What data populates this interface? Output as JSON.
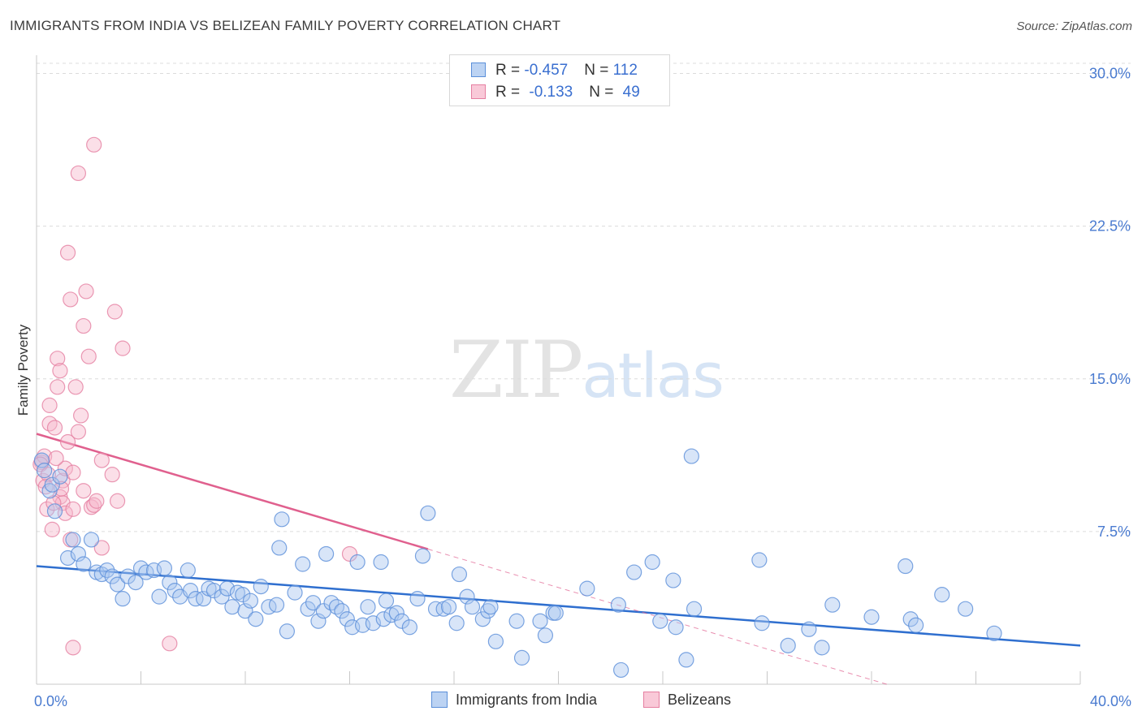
{
  "header": {
    "title": "IMMIGRANTS FROM INDIA VS BELIZEAN FAMILY POVERTY CORRELATION CHART",
    "source": "Source: ZipAtlas.com"
  },
  "watermark": {
    "zip": "ZIP",
    "atlas": "atlas"
  },
  "legend": {
    "india": {
      "r_label": "R = ",
      "r_value": "-0.457",
      "n_label": "N = ",
      "n_value": "112"
    },
    "belize": {
      "r_label": "R = ",
      "r_value": "-0.133",
      "n_label": "N = ",
      "n_value": "49"
    }
  },
  "bottom_legend": {
    "india": "Immigrants from India",
    "belize": "Belizeans"
  },
  "colors": {
    "india_fill": "#a9c6ef",
    "india_stroke": "#5b8fd9",
    "india_line": "#2f6fcf",
    "belize_fill": "#f6b8cc",
    "belize_stroke": "#e57fa1",
    "belize_line": "#e0608e",
    "grid": "#dcdcdc",
    "tick_text": "#4a7bd0"
  },
  "chart_data": {
    "type": "scatter",
    "title": "IMMIGRANTS FROM INDIA VS BELIZEAN FAMILY POVERTY CORRELATION CHART",
    "xlabel": "",
    "ylabel": "Family Poverty",
    "xlim": [
      0,
      40
    ],
    "ylim": [
      0,
      30.5
    ],
    "x_tick_labels": [
      "0.0%",
      "40.0%"
    ],
    "y_ticks": [
      7.5,
      15.0,
      22.5,
      30.0
    ],
    "y_tick_labels": [
      "7.5%",
      "15.0%",
      "22.5%",
      "30.0%"
    ],
    "grid": true,
    "series": [
      {
        "name": "Immigrants from India",
        "trend": {
          "x0": 0,
          "y0": 5.8,
          "x1": 40,
          "y1": 1.9,
          "solid_to": 40
        },
        "points": [
          [
            0.2,
            11.0
          ],
          [
            0.3,
            10.5
          ],
          [
            0.5,
            9.5
          ],
          [
            0.6,
            9.8
          ],
          [
            0.7,
            8.5
          ],
          [
            0.9,
            10.2
          ],
          [
            1.2,
            6.2
          ],
          [
            1.4,
            7.1
          ],
          [
            1.6,
            6.4
          ],
          [
            1.8,
            5.9
          ],
          [
            2.1,
            7.1
          ],
          [
            2.3,
            5.5
          ],
          [
            2.5,
            5.4
          ],
          [
            2.7,
            5.6
          ],
          [
            2.9,
            5.3
          ],
          [
            3.1,
            4.9
          ],
          [
            3.3,
            4.2
          ],
          [
            3.5,
            5.3
          ],
          [
            3.8,
            5.0
          ],
          [
            4.0,
            5.7
          ],
          [
            4.2,
            5.5
          ],
          [
            4.5,
            5.6
          ],
          [
            4.7,
            4.3
          ],
          [
            4.9,
            5.7
          ],
          [
            5.1,
            5.0
          ],
          [
            5.3,
            4.6
          ],
          [
            5.5,
            4.3
          ],
          [
            5.8,
            5.6
          ],
          [
            5.9,
            4.6
          ],
          [
            6.1,
            4.2
          ],
          [
            6.4,
            4.2
          ],
          [
            6.6,
            4.7
          ],
          [
            6.8,
            4.6
          ],
          [
            7.1,
            4.3
          ],
          [
            7.3,
            4.7
          ],
          [
            7.5,
            3.8
          ],
          [
            7.7,
            4.5
          ],
          [
            7.9,
            4.4
          ],
          [
            8.0,
            3.6
          ],
          [
            8.2,
            4.1
          ],
          [
            8.4,
            3.2
          ],
          [
            8.6,
            4.8
          ],
          [
            8.9,
            3.8
          ],
          [
            9.2,
            3.9
          ],
          [
            9.4,
            8.1
          ],
          [
            9.3,
            6.7
          ],
          [
            9.6,
            2.6
          ],
          [
            9.9,
            4.5
          ],
          [
            10.2,
            5.9
          ],
          [
            10.4,
            3.7
          ],
          [
            10.6,
            4.0
          ],
          [
            10.8,
            3.1
          ],
          [
            11.0,
            3.6
          ],
          [
            11.1,
            6.4
          ],
          [
            11.3,
            4.0
          ],
          [
            11.5,
            3.8
          ],
          [
            11.7,
            3.6
          ],
          [
            11.9,
            3.2
          ],
          [
            12.1,
            2.8
          ],
          [
            12.3,
            6.0
          ],
          [
            12.5,
            2.9
          ],
          [
            12.7,
            3.8
          ],
          [
            12.9,
            3.0
          ],
          [
            13.2,
            6.0
          ],
          [
            13.3,
            3.2
          ],
          [
            13.4,
            4.1
          ],
          [
            13.6,
            3.4
          ],
          [
            13.8,
            3.5
          ],
          [
            14.0,
            3.1
          ],
          [
            14.3,
            2.8
          ],
          [
            14.6,
            4.2
          ],
          [
            14.8,
            6.3
          ],
          [
            15.0,
            8.4
          ],
          [
            15.3,
            3.7
          ],
          [
            15.6,
            3.7
          ],
          [
            15.8,
            3.8
          ],
          [
            16.1,
            3.0
          ],
          [
            16.2,
            5.4
          ],
          [
            16.5,
            4.3
          ],
          [
            16.7,
            3.8
          ],
          [
            17.1,
            3.2
          ],
          [
            17.3,
            3.6
          ],
          [
            17.4,
            3.8
          ],
          [
            17.6,
            2.1
          ],
          [
            18.4,
            3.1
          ],
          [
            18.6,
            1.3
          ],
          [
            19.3,
            3.1
          ],
          [
            19.5,
            2.4
          ],
          [
            19.8,
            3.5
          ],
          [
            19.9,
            3.5
          ],
          [
            21.1,
            4.7
          ],
          [
            22.3,
            3.9
          ],
          [
            22.4,
            0.7
          ],
          [
            22.9,
            5.5
          ],
          [
            23.6,
            6.0
          ],
          [
            23.9,
            3.1
          ],
          [
            24.4,
            5.1
          ],
          [
            24.5,
            2.8
          ],
          [
            24.9,
            1.2
          ],
          [
            25.1,
            11.2
          ],
          [
            25.2,
            3.7
          ],
          [
            27.7,
            6.1
          ],
          [
            27.8,
            3.0
          ],
          [
            28.8,
            1.9
          ],
          [
            29.6,
            2.7
          ],
          [
            30.1,
            1.8
          ],
          [
            30.5,
            3.9
          ],
          [
            32.0,
            3.3
          ],
          [
            33.3,
            5.8
          ],
          [
            33.5,
            3.2
          ],
          [
            33.7,
            2.9
          ],
          [
            34.7,
            4.4
          ],
          [
            35.6,
            3.7
          ],
          [
            36.7,
            2.5
          ]
        ]
      },
      {
        "name": "Belizeans",
        "trend": {
          "x0": 0,
          "y0": 12.3,
          "x1": 40,
          "y1": -2.8,
          "solid_to": 15.0
        },
        "points": [
          [
            0.2,
            10.9
          ],
          [
            0.3,
            11.2
          ],
          [
            0.4,
            8.6
          ],
          [
            0.5,
            12.8
          ],
          [
            0.5,
            13.7
          ],
          [
            0.6,
            7.6
          ],
          [
            0.7,
            12.6
          ],
          [
            0.8,
            14.6
          ],
          [
            0.8,
            16.0
          ],
          [
            0.9,
            15.4
          ],
          [
            0.9,
            9.2
          ],
          [
            1.0,
            8.9
          ],
          [
            1.0,
            10.0
          ],
          [
            1.1,
            8.4
          ],
          [
            1.1,
            10.6
          ],
          [
            1.2,
            11.9
          ],
          [
            1.2,
            21.2
          ],
          [
            1.3,
            18.9
          ],
          [
            1.3,
            7.1
          ],
          [
            1.4,
            10.4
          ],
          [
            1.4,
            8.6
          ],
          [
            1.4,
            1.8
          ],
          [
            1.5,
            14.6
          ],
          [
            1.6,
            12.4
          ],
          [
            1.6,
            25.1
          ],
          [
            1.7,
            13.2
          ],
          [
            1.8,
            17.6
          ],
          [
            1.8,
            9.5
          ],
          [
            1.9,
            19.3
          ],
          [
            2.0,
            16.1
          ],
          [
            2.1,
            8.7
          ],
          [
            2.2,
            8.8
          ],
          [
            2.3,
            9.0
          ],
          [
            2.5,
            6.7
          ],
          [
            2.5,
            11.0
          ],
          [
            2.2,
            26.5
          ],
          [
            2.9,
            10.3
          ],
          [
            3.0,
            18.3
          ],
          [
            3.1,
            9.0
          ],
          [
            3.3,
            16.5
          ],
          [
            5.1,
            2.0
          ],
          [
            12.0,
            6.4
          ],
          [
            0.15,
            10.8
          ],
          [
            0.25,
            10.0
          ],
          [
            0.45,
            10.3
          ],
          [
            0.35,
            9.7
          ],
          [
            0.65,
            8.9
          ],
          [
            0.75,
            11.1
          ],
          [
            0.95,
            9.6
          ]
        ]
      }
    ]
  }
}
